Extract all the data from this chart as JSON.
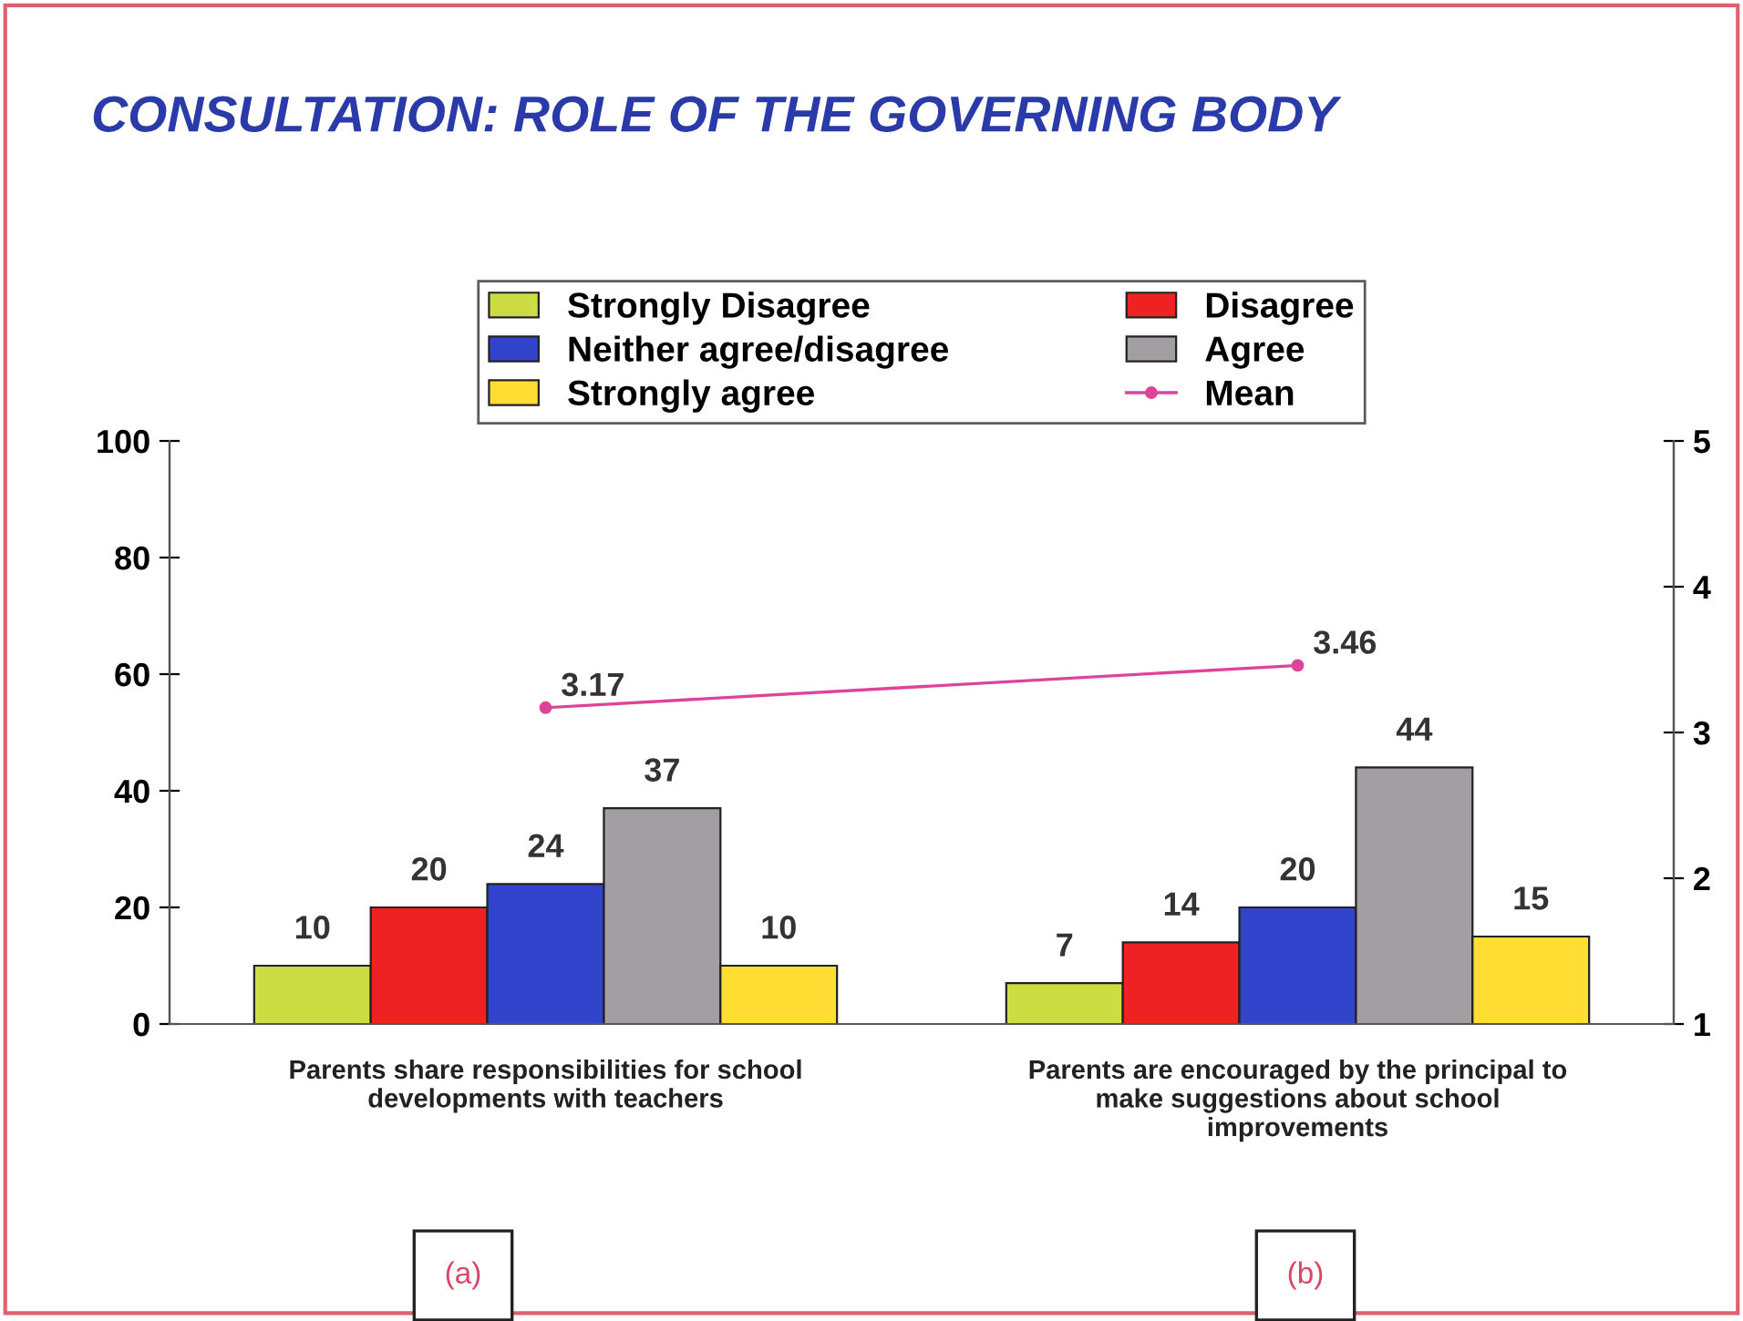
{
  "chart_data": {
    "type": "bar",
    "title": "CONSULTATION: ROLE OF THE GOVERNING BODY",
    "categories": [
      "Parents share responsibilities for school\ndevelopments with teachers",
      "Parents are encouraged by the principal to\nmake suggestions about school\nimprovements"
    ],
    "series": [
      {
        "name": "Strongly Disagree",
        "color": "#ccdd44",
        "values": [
          10,
          7
        ]
      },
      {
        "name": "Disagree",
        "color": "#ee2222",
        "values": [
          20,
          14
        ]
      },
      {
        "name": "Neither agree/disagree",
        "color": "#3344cc",
        "values": [
          24,
          20
        ]
      },
      {
        "name": "Agree",
        "color": "#a39ea2",
        "values": [
          37,
          44
        ]
      },
      {
        "name": "Strongly agree",
        "color": "#ffdd33",
        "values": [
          10,
          15
        ]
      },
      {
        "name": "Mean",
        "type": "line",
        "axis": "y2",
        "color": "#dd4499",
        "marker": "circle",
        "values": [
          3.17,
          3.46
        ]
      }
    ],
    "ylim": [
      0,
      100
    ],
    "yticks": [
      0,
      20,
      40,
      60,
      80,
      100
    ],
    "y2lim": [
      1,
      5
    ],
    "y2ticks": [
      1,
      2,
      3,
      4,
      5
    ],
    "data_labels": true,
    "legend": "top",
    "grid": false,
    "annotations": [
      "(a)",
      "(b)"
    ]
  }
}
